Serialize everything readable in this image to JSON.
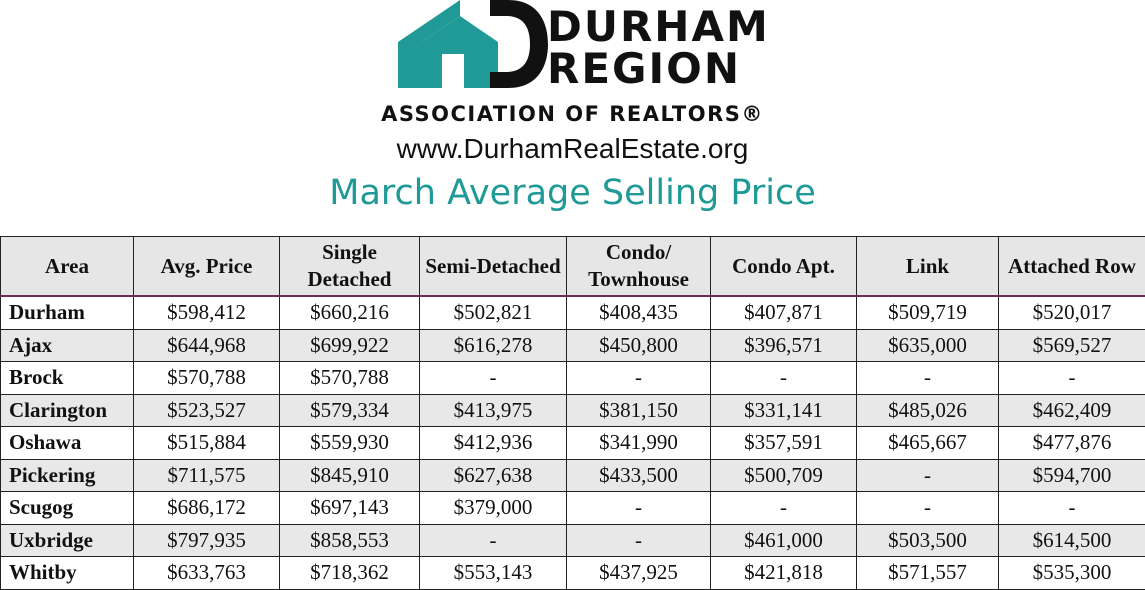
{
  "brand": {
    "line1": "DURHAM",
    "line2": "REGION",
    "association": "ASSOCIATION OF REALTORS®",
    "website": "www.DurhamRealEstate.org",
    "accent_color": "#1f9a97"
  },
  "title": "March Average Selling Price",
  "table": {
    "headers": [
      "Area",
      "Avg. Price",
      "Single Detached",
      "Semi-Detached",
      "Condo/ Townhouse",
      "Condo Apt.",
      "Link",
      "Attached Row"
    ],
    "rows": [
      [
        "Durham",
        "$598,412",
        "$660,216",
        "$502,821",
        "$408,435",
        "$407,871",
        "$509,719",
        "$520,017"
      ],
      [
        "Ajax",
        "$644,968",
        "$699,922",
        "$616,278",
        "$450,800",
        "$396,571",
        "$635,000",
        "$569,527"
      ],
      [
        "Brock",
        "$570,788",
        "$570,788",
        "-",
        "-",
        "-",
        "-",
        "-"
      ],
      [
        "Clarington",
        "$523,527",
        "$579,334",
        "$413,975",
        "$381,150",
        "$331,141",
        "$485,026",
        "$462,409"
      ],
      [
        "Oshawa",
        "$515,884",
        "$559,930",
        "$412,936",
        "$341,990",
        "$357,591",
        "$465,667",
        "$477,876"
      ],
      [
        "Pickering",
        "$711,575",
        "$845,910",
        "$627,638",
        "$433,500",
        "$500,709",
        "-",
        "$594,700"
      ],
      [
        "Scugog",
        "$686,172",
        "$697,143",
        "$379,000",
        "-",
        "-",
        "-",
        "-"
      ],
      [
        "Uxbridge",
        "$797,935",
        "$858,553",
        "-",
        "-",
        "$461,000",
        "$503,500",
        "$614,500"
      ],
      [
        "Whitby",
        "$633,763",
        "$718,362",
        "$553,143",
        "$437,925",
        "$421,818",
        "$571,557",
        "$535,300"
      ]
    ]
  }
}
